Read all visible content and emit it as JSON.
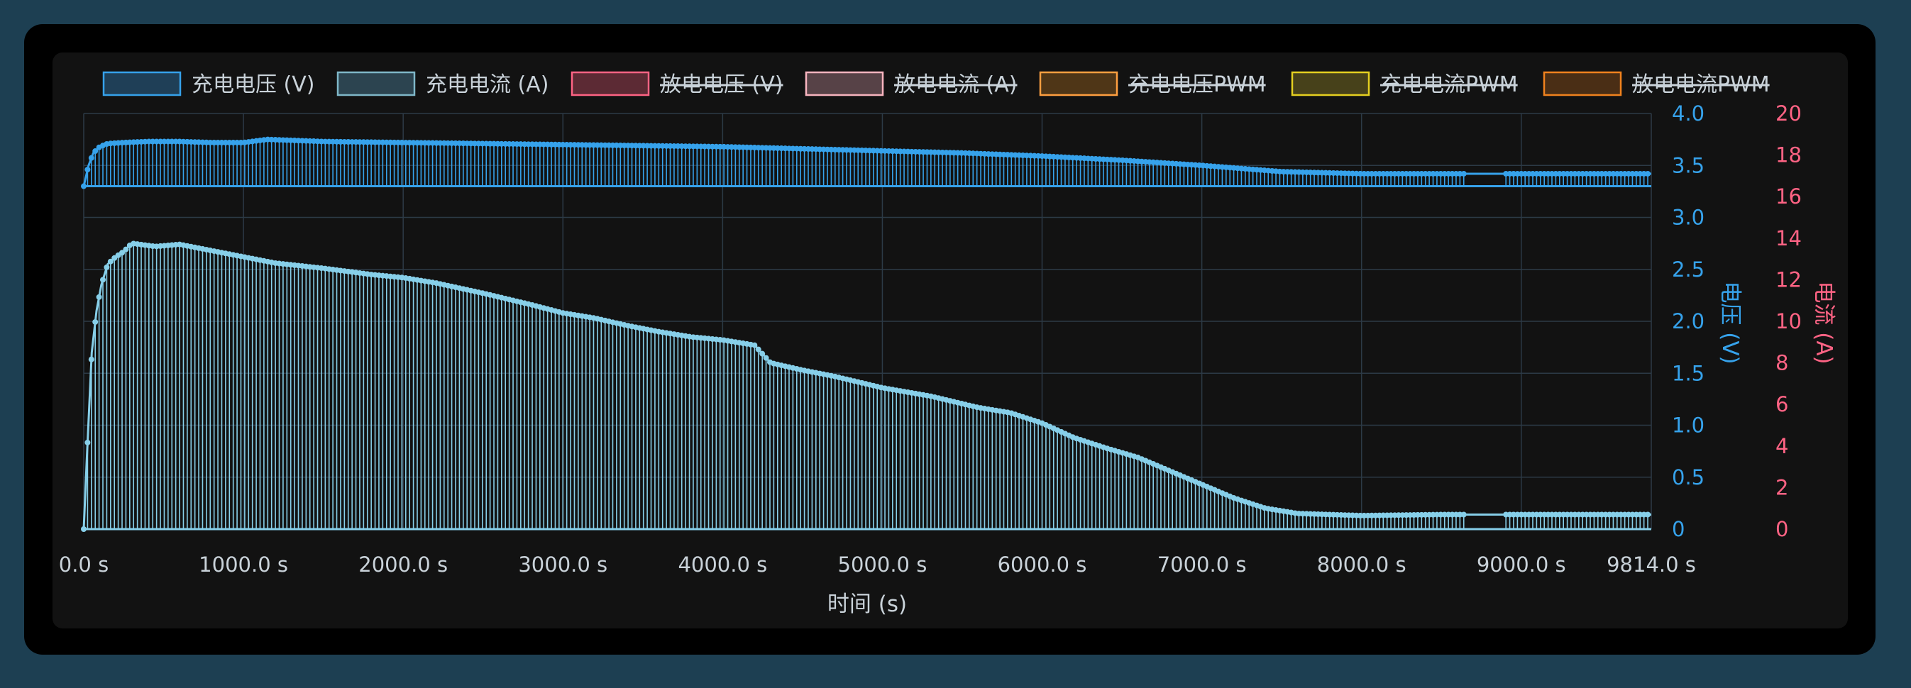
{
  "colors": {
    "background": "#1d3f52",
    "card": "#000000",
    "panel": "#121212",
    "grid": "#2c3a46",
    "voltage": "#36a2eb",
    "current": "#87cfe9",
    "voltage_axis": "#36a2eb",
    "current_axis": "#ff6384",
    "tick_text": "#c9d2d9"
  },
  "chart_data": {
    "type": "line",
    "legend_position": "top",
    "legend": [
      {
        "label": "充电电压 (V)",
        "hidden": false,
        "border": "#36a2eb",
        "fill": "#1f3f57"
      },
      {
        "label": "充电电流 (A)",
        "hidden": false,
        "border": "#7fb7c8",
        "fill": "#2c4450"
      },
      {
        "label": "放电电压 (V)",
        "hidden": true,
        "border": "#ff6384",
        "fill": "#5c2a34"
      },
      {
        "label": "放电电流 (A)",
        "hidden": true,
        "border": "#f8b4bf",
        "fill": "#574247"
      },
      {
        "label": "充电电压PWM",
        "hidden": true,
        "border": "#ff9f40",
        "fill": "#4f3617"
      },
      {
        "label": "充电电流PWM",
        "hidden": true,
        "border": "#e5d020",
        "fill": "#47411a"
      },
      {
        "label": "放电电流PWM",
        "hidden": true,
        "border": "#f0821e",
        "fill": "#4a2e15"
      }
    ],
    "xlabel": "时间 (s)",
    "x_ticks": [
      "0.0 s",
      "1000.0 s",
      "2000.0 s",
      "3000.0 s",
      "4000.0 s",
      "5000.0 s",
      "6000.0 s",
      "7000.0 s",
      "8000.0 s",
      "9000.0 s",
      "9814.0 s"
    ],
    "xlim": [
      0,
      9814
    ],
    "y_left": {
      "label": "电压 (V)",
      "ticks": [
        "0",
        "0.5",
        "1.0",
        "1.5",
        "2.0",
        "2.5",
        "3.0",
        "3.5",
        "4.0"
      ],
      "lim": [
        0,
        4.0
      ]
    },
    "y_right": {
      "label": "电流 (A)",
      "ticks": [
        "0",
        "2",
        "4",
        "6",
        "8",
        "10",
        "12",
        "14",
        "16",
        "18",
        "20"
      ],
      "lim": [
        0,
        20
      ]
    },
    "grid": true,
    "series": [
      {
        "name": "充电电压 (V)",
        "axis": "left",
        "baseline": 3.3,
        "points": [
          [
            0,
            3.3
          ],
          [
            30,
            3.5
          ],
          [
            60,
            3.62
          ],
          [
            100,
            3.68
          ],
          [
            150,
            3.71
          ],
          [
            250,
            3.72
          ],
          [
            400,
            3.73
          ],
          [
            600,
            3.73
          ],
          [
            800,
            3.72
          ],
          [
            1000,
            3.72
          ],
          [
            1150,
            3.75
          ],
          [
            1500,
            3.73
          ],
          [
            2000,
            3.72
          ],
          [
            2500,
            3.71
          ],
          [
            3000,
            3.7
          ],
          [
            3500,
            3.69
          ],
          [
            4000,
            3.68
          ],
          [
            4500,
            3.66
          ],
          [
            5000,
            3.64
          ],
          [
            5500,
            3.62
          ],
          [
            6000,
            3.59
          ],
          [
            6500,
            3.55
          ],
          [
            7000,
            3.5
          ],
          [
            7500,
            3.44
          ],
          [
            8000,
            3.42
          ],
          [
            8500,
            3.42
          ],
          [
            8650,
            3.42
          ],
          [
            8900,
            3.42
          ],
          [
            9500,
            3.42
          ],
          [
            9814,
            3.42
          ]
        ]
      },
      {
        "name": "充电电流 (A)",
        "axis": "left",
        "baseline": 0,
        "points": [
          [
            0,
            0
          ],
          [
            20,
            0.7
          ],
          [
            50,
            1.7
          ],
          [
            80,
            2.1
          ],
          [
            110,
            2.35
          ],
          [
            150,
            2.55
          ],
          [
            200,
            2.62
          ],
          [
            250,
            2.67
          ],
          [
            300,
            2.75
          ],
          [
            450,
            2.72
          ],
          [
            600,
            2.74
          ],
          [
            800,
            2.68
          ],
          [
            1000,
            2.62
          ],
          [
            1200,
            2.56
          ],
          [
            1500,
            2.51
          ],
          [
            1800,
            2.45
          ],
          [
            2000,
            2.42
          ],
          [
            2200,
            2.37
          ],
          [
            2500,
            2.27
          ],
          [
            2800,
            2.16
          ],
          [
            3000,
            2.08
          ],
          [
            3200,
            2.03
          ],
          [
            3400,
            1.96
          ],
          [
            3600,
            1.9
          ],
          [
            3800,
            1.85
          ],
          [
            4000,
            1.82
          ],
          [
            4200,
            1.77
          ],
          [
            4300,
            1.6
          ],
          [
            4500,
            1.53
          ],
          [
            4700,
            1.47
          ],
          [
            5000,
            1.36
          ],
          [
            5300,
            1.28
          ],
          [
            5600,
            1.17
          ],
          [
            5800,
            1.12
          ],
          [
            6000,
            1.02
          ],
          [
            6200,
            0.88
          ],
          [
            6400,
            0.78
          ],
          [
            6600,
            0.69
          ],
          [
            6800,
            0.56
          ],
          [
            7000,
            0.43
          ],
          [
            7200,
            0.3
          ],
          [
            7400,
            0.2
          ],
          [
            7600,
            0.15
          ],
          [
            8000,
            0.13
          ],
          [
            8500,
            0.14
          ],
          [
            8650,
            0.14
          ],
          [
            8900,
            0.14
          ],
          [
            9500,
            0.14
          ],
          [
            9814,
            0.14
          ]
        ]
      }
    ],
    "gap": [
      8650,
      8900
    ]
  }
}
